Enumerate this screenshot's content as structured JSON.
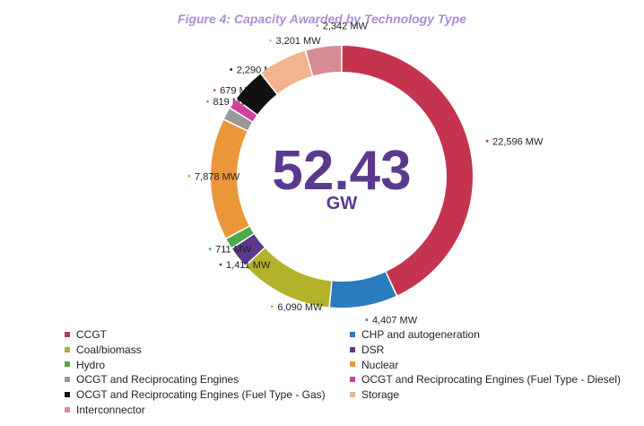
{
  "chart_data": {
    "type": "pie",
    "variant": "donut",
    "title": "Figure 4: Capacity Awarded by Technology Type",
    "center_value": "52.43",
    "center_unit": "GW",
    "legend_position": "bottom",
    "unit": "MW",
    "slices": [
      {
        "name": "CCGT",
        "value": 22596,
        "label": "22,596 MW",
        "color": "#c4344f"
      },
      {
        "name": "CHP and autogeneration",
        "value": 4407,
        "label": "4,407 MW",
        "color": "#2b7bbf"
      },
      {
        "name": "Coal/biomass",
        "value": 6090,
        "label": "6,090 MW",
        "color": "#b2b22b"
      },
      {
        "name": "DSR",
        "value": 1411,
        "label": "1,411 MW",
        "color": "#5b3a8e"
      },
      {
        "name": "Hydro",
        "value": 711,
        "label": "711 MW",
        "color": "#4caa4a"
      },
      {
        "name": "Nuclear",
        "value": 7878,
        "label": "7,878 MW",
        "color": "#ec963a"
      },
      {
        "name": "OCGT and Reciprocating Engines",
        "value": 819,
        "label": "819 MW",
        "color": "#999999"
      },
      {
        "name": "OCGT and Reciprocating Engines (Fuel Type - Diesel)",
        "value": 679,
        "label": "679 MW",
        "color": "#d43f9c"
      },
      {
        "name": "OCGT and Reciprocating Engines (Fuel Type - Gas)",
        "value": 2290,
        "label": "2,290 MW",
        "color": "#111111"
      },
      {
        "name": "Storage",
        "value": 3201,
        "label": "3,201 MW",
        "color": "#f2b48d"
      },
      {
        "name": "Interconnector",
        "value": 2342,
        "label": "2,342 MW",
        "color": "#d88b93"
      }
    ],
    "legend_columns": [
      [
        "CCGT",
        "Coal/biomass",
        "Hydro",
        "OCGT and Reciprocating Engines",
        "OCGT and Reciprocating Engines (Fuel Type - Gas)",
        "Interconnector"
      ],
      [
        "CHP and autogeneration",
        "DSR",
        "Nuclear",
        "OCGT and Reciprocating Engines (Fuel Type - Diesel)",
        "Storage"
      ]
    ]
  }
}
